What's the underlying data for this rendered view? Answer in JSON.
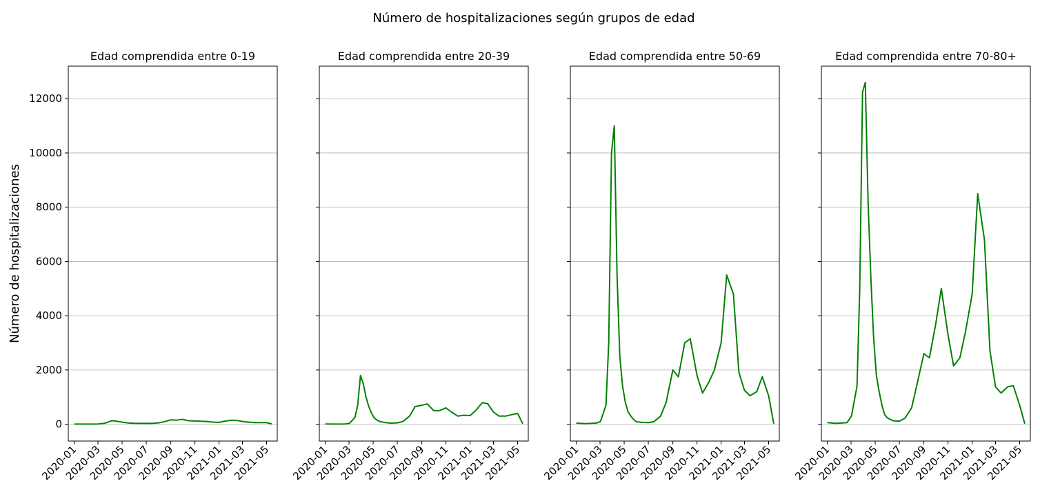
{
  "chart_data": {
    "type": "line",
    "title": "Número de hospitalizaciones según grupos de edad",
    "ylabel": "Número de hospitalizaciones",
    "xlabel": "",
    "ylim": [
      -620,
      13200
    ],
    "yticks": [
      0,
      2000,
      4000,
      6000,
      8000,
      10000,
      12000
    ],
    "xlim": [
      "2019-12-17",
      "2021-05-28"
    ],
    "xticks": [
      "2020-01",
      "2020-03",
      "2020-05",
      "2020-07",
      "2020-09",
      "2020-11",
      "2021-01",
      "2021-03",
      "2021-05"
    ],
    "grid": "horizontal",
    "sharey": true,
    "line_color": "#008000",
    "x": [
      "2020-01-01",
      "2020-01-24",
      "2020-02-20",
      "2020-03-02",
      "2020-03-16",
      "2020-03-23",
      "2020-03-30",
      "2020-04-06",
      "2020-04-13",
      "2020-04-20",
      "2020-04-27",
      "2020-05-04",
      "2020-05-11",
      "2020-05-18",
      "2020-05-25",
      "2020-06-01",
      "2020-06-15",
      "2020-07-01",
      "2020-07-15",
      "2020-08-01",
      "2020-08-15",
      "2020-09-01",
      "2020-09-15",
      "2020-10-01",
      "2020-10-15",
      "2020-11-01",
      "2020-11-15",
      "2020-12-01",
      "2020-12-15",
      "2021-01-01",
      "2021-01-15",
      "2021-02-01",
      "2021-02-15",
      "2021-03-01",
      "2021-03-15",
      "2021-04-01",
      "2021-04-15",
      "2021-05-01",
      "2021-05-14"
    ],
    "panels": [
      {
        "title": "Edad comprendida entre 0-19",
        "series": [
          {
            "values": [
              5,
              5,
              5,
              10,
              30,
              60,
              100,
              130,
              120,
              100,
              90,
              70,
              55,
              45,
              40,
              35,
              30,
              30,
              30,
              50,
              90,
              160,
              150,
              180,
              130,
              120,
              110,
              100,
              80,
              70,
              110,
              150,
              140,
              100,
              80,
              60,
              60,
              60,
              10
            ]
          }
        ]
      },
      {
        "title": "Edad comprendida entre 20-39",
        "series": [
          {
            "values": [
              10,
              5,
              10,
              30,
              250,
              700,
              1800,
              1500,
              1000,
              650,
              400,
              230,
              150,
              100,
              80,
              60,
              40,
              50,
              100,
              300,
              650,
              700,
              750,
              500,
              500,
              600,
              450,
              300,
              330,
              320,
              500,
              800,
              750,
              450,
              300,
              300,
              350,
              400,
              20
            ]
          }
        ]
      },
      {
        "title": "Edad comprendida entre 50-69",
        "series": [
          {
            "values": [
              40,
              20,
              40,
              100,
              700,
              3000,
              10000,
              11000,
              5500,
              2500,
              1400,
              800,
              450,
              300,
              170,
              90,
              70,
              60,
              90,
              300,
              800,
              2000,
              1750,
              3000,
              3150,
              1800,
              1150,
              1550,
              2000,
              3000,
              5500,
              4800,
              1900,
              1250,
              1050,
              1200,
              1750,
              1050,
              20
            ]
          }
        ]
      },
      {
        "title": "Edad comprendida entre 70-80+",
        "series": [
          {
            "values": [
              60,
              30,
              60,
              300,
              1400,
              5000,
              12250,
              12600,
              8200,
              5400,
              3200,
              1800,
              1200,
              700,
              350,
              230,
              130,
              110,
              220,
              600,
              1500,
              2600,
              2450,
              3700,
              5000,
              3300,
              2150,
              2450,
              3400,
              4800,
              8500,
              6800,
              2700,
              1380,
              1150,
              1380,
              1420,
              700,
              20
            ]
          }
        ]
      }
    ]
  }
}
